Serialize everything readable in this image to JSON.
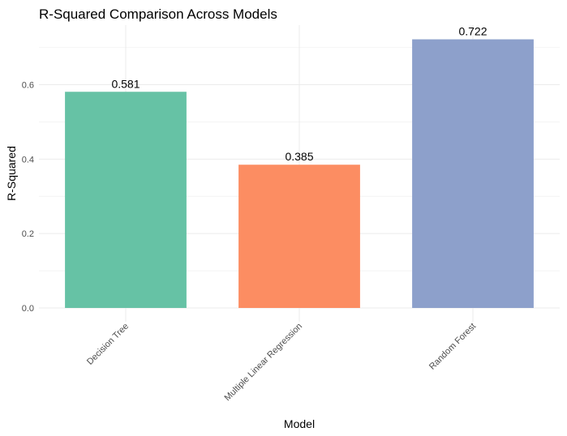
{
  "chart_data": {
    "type": "bar",
    "title": "R-Squared Comparison Across Models",
    "xlabel": "Model",
    "ylabel": "R-Squared",
    "categories": [
      "Decision Tree",
      "Multiple Linear Regression",
      "Random Forest"
    ],
    "values": [
      0.581,
      0.385,
      0.722
    ],
    "value_labels": [
      "0.581",
      "0.385",
      "0.722"
    ],
    "colors": [
      "#66c2a5",
      "#fc8d62",
      "#8da0cb"
    ],
    "y_ticks": [
      0.0,
      0.2,
      0.4,
      0.6
    ],
    "y_tick_labels": [
      "0.0",
      "0.2",
      "0.4",
      "0.6"
    ],
    "ylim": [
      0,
      0.758
    ],
    "grid": true,
    "legend": "none"
  }
}
